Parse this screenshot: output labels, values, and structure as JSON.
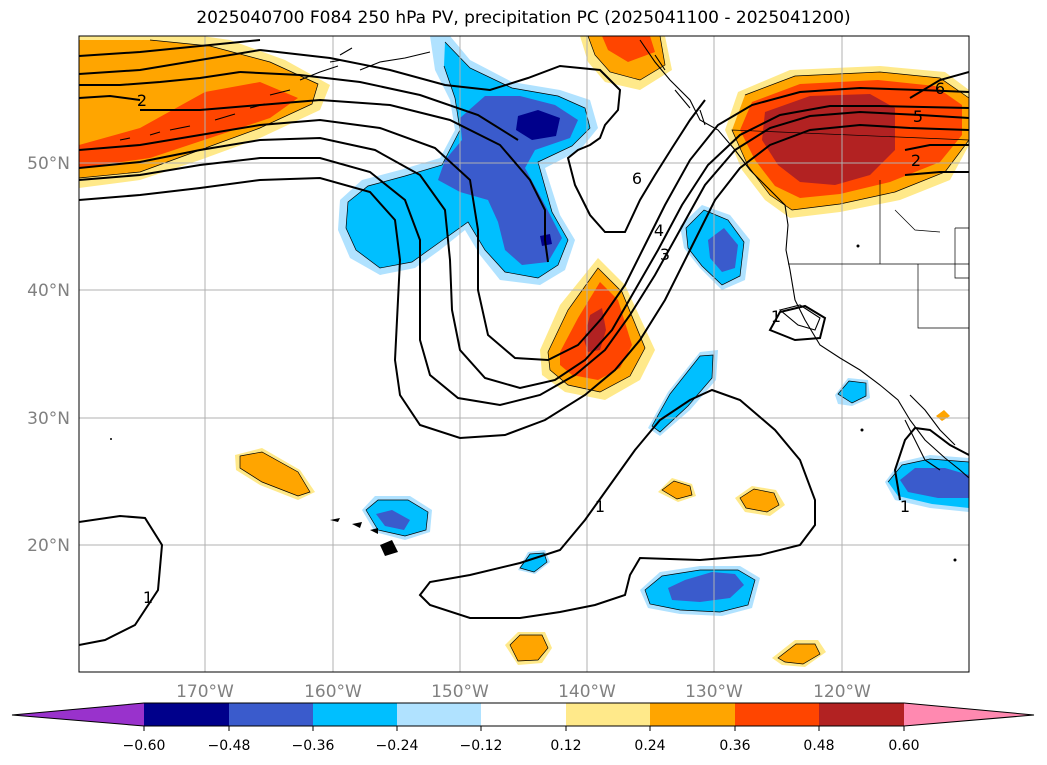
{
  "title": "2025040700 F084 250 hPa PV, precipitation PC (2025041100 - 2025041200)",
  "axes": {
    "lat_labels": [
      "50°N",
      "40°N",
      "30°N",
      "20°N"
    ],
    "lon_labels": [
      "170°W",
      "160°W",
      "150°W",
      "140°W",
      "130°W",
      "120°W"
    ],
    "label_color": "#808080"
  },
  "contour_labels": [
    "2",
    "6",
    "5",
    "2",
    "4",
    "3",
    "1",
    "1",
    "1",
    "1",
    "6"
  ],
  "colorbar": {
    "ticks": [
      "−0.60",
      "−0.48",
      "−0.36",
      "−0.24",
      "−0.12",
      "0.12",
      "0.24",
      "0.36",
      "0.48",
      "0.60"
    ],
    "colors": [
      "#9932cc",
      "#00008b",
      "#3a5bcc",
      "#00bfff",
      "#b0e2ff",
      "#ffffff",
      "#ffe98a",
      "#ffa500",
      "#ff4500",
      "#b22222",
      "#ff89b0"
    ]
  },
  "fill_colors": {
    "light_yellow": "#ffe98a",
    "orange": "#ffa500",
    "red_orange": "#ff4500",
    "dark_red": "#b22222",
    "light_blue": "#b0e2ff",
    "cyan": "#00bfff",
    "medium_blue": "#3a5bcc",
    "navy": "#00008b"
  }
}
